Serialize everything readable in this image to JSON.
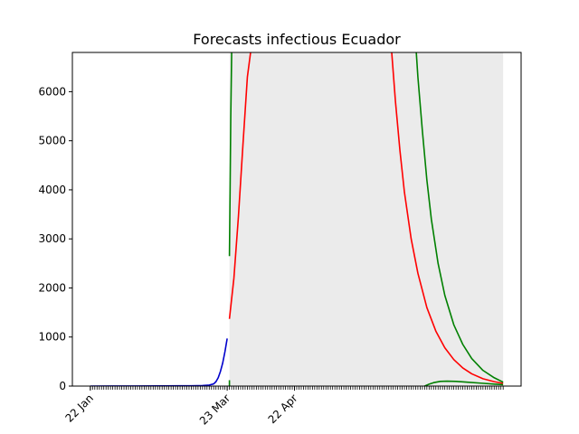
{
  "chart_data": {
    "type": "line",
    "title": "Forecasts infectious Ecuador",
    "xlabel": "",
    "ylabel": "",
    "ylim": [
      0,
      6800
    ],
    "yticks": [
      0,
      1000,
      2000,
      3000,
      4000,
      5000,
      6000
    ],
    "x_tick_labels": [
      {
        "label": "22 Jan",
        "day": 0
      },
      {
        "label": "23 Mar",
        "day": 61
      },
      {
        "label": "22 Apr",
        "day": 91
      }
    ],
    "x_start_date": "22 Jan",
    "x_range_days": [
      -8,
      192
    ],
    "minor_tick_days": [
      0,
      184
    ],
    "forecast_band": {
      "from_day": 62,
      "to_day": 184,
      "color": "#ebebeb"
    },
    "series": [
      {
        "color": "#0000cc",
        "x": [
          0,
          10,
          20,
          30,
          40,
          45,
          50,
          53,
          55,
          56,
          57,
          58,
          59,
          60,
          61
        ],
        "y": [
          0,
          1,
          2,
          3,
          5,
          7,
          10,
          20,
          45,
          90,
          170,
          300,
          470,
          700,
          970
        ]
      },
      {
        "color": "#ff0000",
        "x": [
          62,
          64,
          66,
          68,
          70,
          72,
          134,
          136,
          138,
          140,
          143,
          146,
          150,
          154,
          158,
          162,
          166,
          170,
          175,
          180,
          184
        ],
        "y": [
          1370,
          2200,
          3450,
          4900,
          6300,
          7000,
          7000,
          5800,
          4800,
          3950,
          3000,
          2300,
          1600,
          1120,
          780,
          540,
          370,
          250,
          150,
          90,
          55
        ]
      },
      {
        "color": "#008000",
        "x": [
          62,
          62.3,
          62.6,
          63,
          63.5,
          145,
          146,
          148,
          150,
          152,
          155,
          158,
          162,
          166,
          170,
          175,
          180,
          184
        ],
        "y": [
          2650,
          4000,
          5500,
          6800,
          7000,
          7000,
          6300,
          5200,
          4200,
          3400,
          2500,
          1850,
          1250,
          850,
          560,
          320,
          170,
          80
        ]
      },
      {
        "color": "#008000",
        "x": [
          62,
          62
        ],
        "y": [
          0,
          120
        ]
      },
      {
        "color": "#008000",
        "x": [
          149,
          151,
          153,
          156,
          159,
          163,
          168,
          174,
          180,
          184
        ],
        "y": [
          0,
          40,
          70,
          95,
          100,
          95,
          80,
          60,
          40,
          28
        ]
      }
    ]
  }
}
